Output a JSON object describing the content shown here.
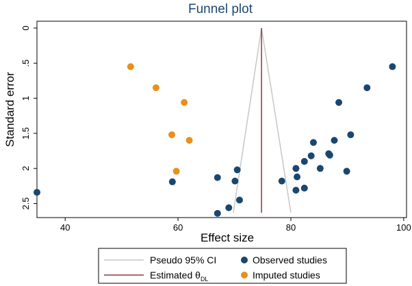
{
  "chart_data": {
    "type": "scatter",
    "title": "Funnel plot",
    "xlabel": "Effect size",
    "ylabel": "Standard error",
    "xlim": [
      35,
      100.5
    ],
    "ylim": [
      0,
      2.7
    ],
    "y_inverted": true,
    "x_ticks": [
      {
        "value": 40,
        "label": "40"
      },
      {
        "value": 60,
        "label": "60"
      },
      {
        "value": 80,
        "label": "80"
      },
      {
        "value": 100,
        "label": "100"
      }
    ],
    "y_ticks": [
      {
        "value": 0,
        "label": "0"
      },
      {
        "value": 0.5,
        "label": ".5"
      },
      {
        "value": 1,
        "label": "1"
      },
      {
        "value": 1.5,
        "label": "1.5"
      },
      {
        "value": 2,
        "label": "2"
      },
      {
        "value": 2.5,
        "label": "2.5"
      }
    ],
    "estimated_theta": 74.8,
    "pseudo_ci": {
      "apex": [
        74.8,
        0
      ],
      "lower_bottom": [
        69.8,
        2.63
      ],
      "upper_bottom": [
        80.0,
        2.63
      ]
    },
    "series": [
      {
        "name": "Observed studies",
        "color": "#1a476f",
        "points": [
          {
            "x": 35.0,
            "y": 2.34
          },
          {
            "x": 59.0,
            "y": 2.19
          },
          {
            "x": 67.0,
            "y": 2.13
          },
          {
            "x": 70.5,
            "y": 2.02
          },
          {
            "x": 70.1,
            "y": 2.18
          },
          {
            "x": 70.9,
            "y": 2.45
          },
          {
            "x": 69.0,
            "y": 2.56
          },
          {
            "x": 67.0,
            "y": 2.64
          },
          {
            "x": 78.4,
            "y": 2.18
          },
          {
            "x": 80.9,
            "y": 2.0
          },
          {
            "x": 81.1,
            "y": 2.12
          },
          {
            "x": 80.9,
            "y": 2.31
          },
          {
            "x": 82.4,
            "y": 2.28
          },
          {
            "x": 82.4,
            "y": 1.9
          },
          {
            "x": 83.6,
            "y": 1.82
          },
          {
            "x": 84.0,
            "y": 1.63
          },
          {
            "x": 85.2,
            "y": 2.0
          },
          {
            "x": 86.7,
            "y": 1.79
          },
          {
            "x": 86.9,
            "y": 1.81
          },
          {
            "x": 87.7,
            "y": 1.6
          },
          {
            "x": 89.9,
            "y": 2.04
          },
          {
            "x": 90.6,
            "y": 1.52
          },
          {
            "x": 88.5,
            "y": 1.06
          },
          {
            "x": 93.5,
            "y": 0.85
          },
          {
            "x": 98.0,
            "y": 0.55
          }
        ]
      },
      {
        "name": "Imputed studies",
        "color": "#e8901e",
        "points": [
          {
            "x": 51.6,
            "y": 0.55
          },
          {
            "x": 56.1,
            "y": 0.85
          },
          {
            "x": 61.1,
            "y": 1.06
          },
          {
            "x": 58.9,
            "y": 1.52
          },
          {
            "x": 62.0,
            "y": 1.6
          },
          {
            "x": 59.7,
            "y": 2.04
          }
        ]
      }
    ],
    "legend": {
      "position": "bottom",
      "items": [
        {
          "label": "Pseudo 95% CI",
          "marker": "line",
          "color": "#c6c6c6"
        },
        {
          "label": "Observed studies",
          "marker": "dot",
          "color": "#1a476f"
        },
        {
          "label": "Estimated θ",
          "subscript": "DL",
          "marker": "line",
          "color": "#90353b"
        },
        {
          "label": "Imputed studies",
          "marker": "dot",
          "color": "#e8901e"
        }
      ]
    }
  }
}
